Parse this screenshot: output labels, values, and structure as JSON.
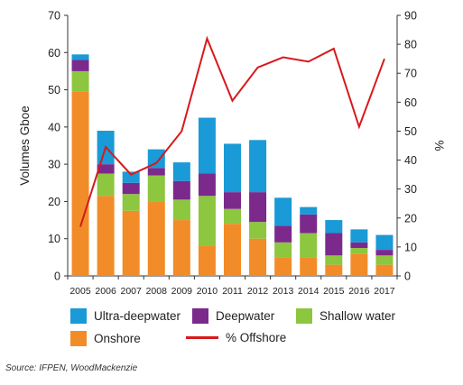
{
  "chart_data": {
    "type": "bar",
    "stacked": true,
    "categories": [
      "2005",
      "2006",
      "2007",
      "2008",
      "2009",
      "2010",
      "2011",
      "2012",
      "2013",
      "2014",
      "2015",
      "2016",
      "2017"
    ],
    "ylabel": "Volumes Gboe",
    "y2label": "%",
    "ylim": [
      0,
      70
    ],
    "y_ticks": [
      0,
      10,
      20,
      30,
      40,
      50,
      60,
      70
    ],
    "y2lim": [
      0,
      90
    ],
    "y2_ticks": [
      0,
      10,
      20,
      30,
      40,
      50,
      60,
      70,
      80,
      90
    ],
    "series": [
      {
        "name": "Onshore",
        "color": "#f28c28",
        "values": [
          49.5,
          21.5,
          17.5,
          20,
          15,
          8,
          14,
          10,
          5,
          5,
          3,
          6,
          3
        ]
      },
      {
        "name": "Shallow water",
        "color": "#8dc63f",
        "values": [
          5.5,
          6,
          4.5,
          7,
          5.5,
          13.5,
          4,
          4.5,
          4,
          6.5,
          2.5,
          1.5,
          2.5
        ]
      },
      {
        "name": "Deepwater",
        "color": "#7b2a8c",
        "values": [
          3,
          2.5,
          3,
          2,
          5,
          6,
          4.5,
          8,
          4.5,
          5,
          6,
          1.5,
          1.5
        ]
      },
      {
        "name": "Ultra-deepwater",
        "color": "#1a9ad6",
        "values": [
          1.5,
          9,
          3,
          5,
          5,
          15,
          13,
          14,
          7.5,
          2,
          3.5,
          3.5,
          4
        ]
      }
    ],
    "line": {
      "name": "% Offshore",
      "color": "#d7191c",
      "axis": "right",
      "values": [
        17,
        44.5,
        35,
        39,
        50,
        82,
        60.5,
        72,
        75.5,
        74,
        78.5,
        51.5,
        75
      ]
    },
    "legend": {
      "position": "bottom",
      "items": [
        {
          "label": "Ultra-deepwater",
          "kind": "box",
          "color": "#1a9ad6"
        },
        {
          "label": "Deepwater",
          "kind": "box",
          "color": "#7b2a8c"
        },
        {
          "label": "Shallow water",
          "kind": "box",
          "color": "#8dc63f"
        },
        {
          "label": "Onshore",
          "kind": "box",
          "color": "#f28c28"
        },
        {
          "label": "% Offshore",
          "kind": "line",
          "color": "#d7191c"
        }
      ]
    },
    "grid": false
  },
  "source": "Source: IFPEN, WoodMackenzie"
}
